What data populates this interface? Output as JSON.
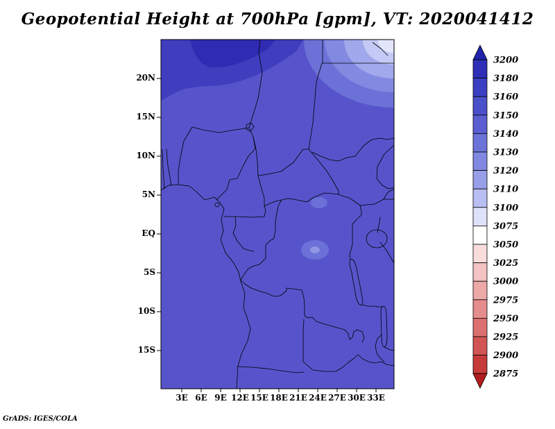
{
  "title": "Geopotential Height at 700hPa [gpm], VT: 2020041412",
  "footer": "GrADS: IGES/COLA",
  "chart_data": {
    "type": "heatmap",
    "title": "Geopotential Height at 700hPa [gpm], VT: 2020041412",
    "variable": "Geopotential Height",
    "level": "700hPa",
    "units": "gpm",
    "valid_time": "2020041412",
    "x_ticks": [
      "3E",
      "6E",
      "9E",
      "12E",
      "15E",
      "18E",
      "21E",
      "24E",
      "27E",
      "30E",
      "33E"
    ],
    "y_ticks": [
      "20N",
      "15N",
      "10N",
      "5N",
      "EQ",
      "5S",
      "10S",
      "15S"
    ],
    "colorbar": {
      "orientation": "vertical",
      "levels": [
        3200,
        3180,
        3160,
        3150,
        3140,
        3130,
        3120,
        3110,
        3100,
        3075,
        3050,
        3025,
        3000,
        2975,
        2950,
        2925,
        2900,
        2875
      ],
      "segment_colors": [
        "#2e2fb6",
        "#3b3fc2",
        "#4a50c9",
        "#5a5ed0",
        "#6b73d8",
        "#8188e1",
        "#989fe9",
        "#b9bef2",
        "#dee1fa",
        "#ffffff",
        "#f9dcdc",
        "#f3c2c2",
        "#eda8a8",
        "#e58c8c",
        "#dc7070",
        "#d25454",
        "#c73a3a"
      ],
      "arrow_top_color": "#2023aa",
      "arrow_bottom_color": "#b21c1c"
    },
    "field_summary": {
      "dominant_value_range": "3140-3160 gpm over most of the mapped domain",
      "max_region": "northwest corner (Sahara, ~3E-15E, 19N-23N) reaching 3180-3200 gpm",
      "min_region": "northeast corner (~30E-36E, 20N-23N) decreasing to ~3100 gpm",
      "interior_lows": "small 3130-3140 gpm pockets near 21E-25E between 5N and 3S"
    }
  },
  "map": {
    "region": "Central Africa, approx 0E-36E, 20S-25N",
    "palette": {
      "field": "#5754cb",
      "high_band": "#403dbf",
      "high_core": "#2f2bb2",
      "ne_band1": "#6b71d7",
      "ne_band2": "#8289e0",
      "ne_band3": "#a2a8ec",
      "ne_band4": "#c5c9f5",
      "ne_corner": "#e3e5fb",
      "spot": "#6b71d7",
      "spot_core": "#9095e4",
      "border_color": "#000000"
    }
  }
}
